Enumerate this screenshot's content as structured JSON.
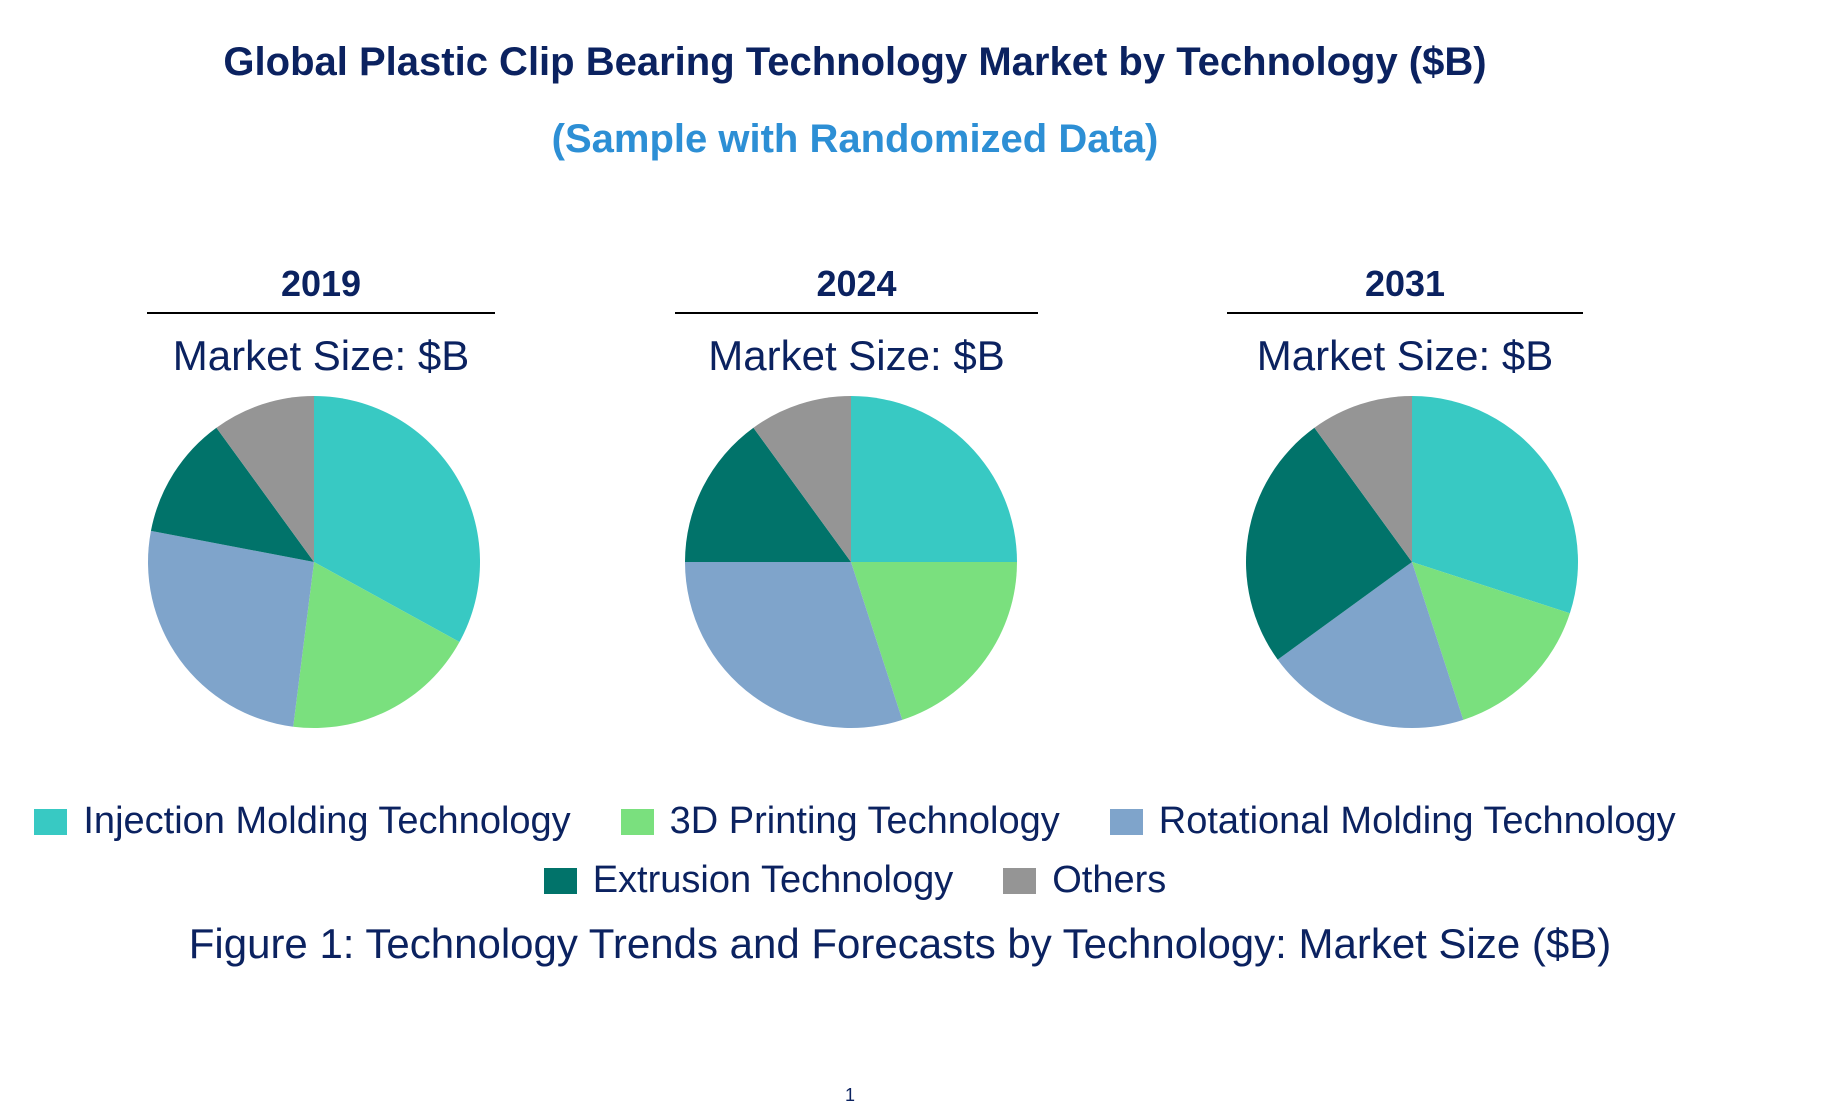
{
  "header": {
    "title": "Global Plastic Clip Bearing Technology Market by Technology ($B)",
    "subtitle": "(Sample with Randomized Data)"
  },
  "chart_data": [
    {
      "type": "pie",
      "title": "2019",
      "subtitle": "Market Size: $B",
      "categories": [
        "Injection Molding Technology",
        "3D Printing Technology",
        "Rotational Molding Technology",
        "Extrusion Technology",
        "Others"
      ],
      "values": [
        33,
        19,
        26,
        12,
        10
      ],
      "colors": [
        "#38c9c3",
        "#7ae07e",
        "#7fa4cb",
        "#01736a",
        "#959595"
      ]
    },
    {
      "type": "pie",
      "title": "2024",
      "subtitle": "Market Size: $B",
      "categories": [
        "Injection Molding Technology",
        "3D Printing Technology",
        "Rotational Molding Technology",
        "Extrusion Technology",
        "Others"
      ],
      "values": [
        25,
        20,
        30,
        15,
        10
      ],
      "colors": [
        "#38c9c3",
        "#7ae07e",
        "#7fa4cb",
        "#01736a",
        "#959595"
      ]
    },
    {
      "type": "pie",
      "title": "2031",
      "subtitle": "Market Size: $B",
      "categories": [
        "Injection Molding Technology",
        "3D Printing Technology",
        "Rotational Molding Technology",
        "Extrusion Technology",
        "Others"
      ],
      "values": [
        30,
        15,
        20,
        25,
        10
      ],
      "colors": [
        "#38c9c3",
        "#7ae07e",
        "#7fa4cb",
        "#01736a",
        "#959595"
      ]
    }
  ],
  "legend": {
    "items": [
      {
        "label": "Injection Molding Technology",
        "color": "#38c9c3"
      },
      {
        "label": "3D Printing Technology",
        "color": "#7ae07e"
      },
      {
        "label": "Rotational Molding Technology",
        "color": "#7fa4cb"
      },
      {
        "label": "Extrusion Technology",
        "color": "#01736a"
      },
      {
        "label": "Others",
        "color": "#959595"
      }
    ]
  },
  "caption": "Figure 1: Technology Trends and Forecasts by Technology: Market Size ($B)",
  "page_number": "1"
}
